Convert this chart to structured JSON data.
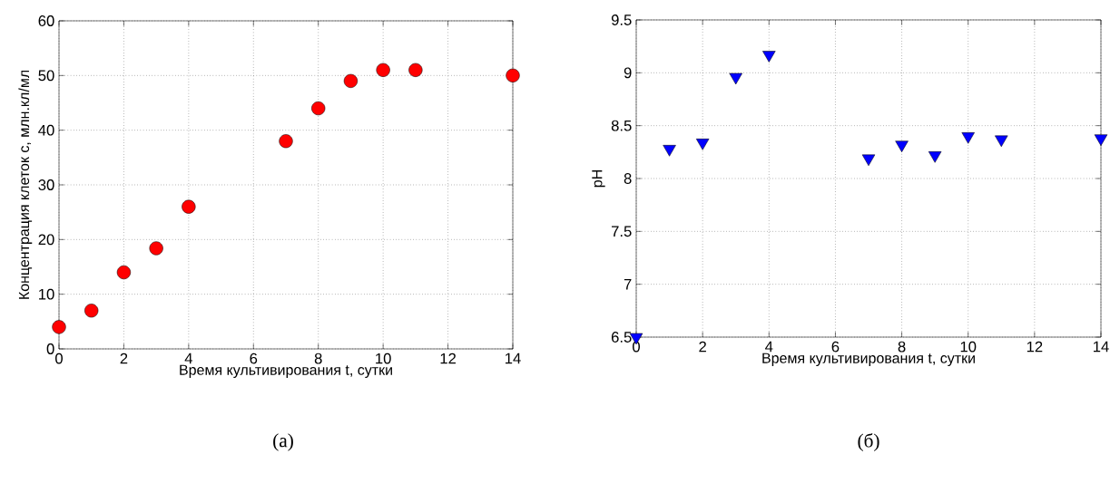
{
  "chart_data": [
    {
      "type": "scatter",
      "xlabel": "Время культивирования t, сутки",
      "ylabel": "Концентрация клеток с, млн.кл/мл",
      "annotations": [
        "(а)"
      ],
      "x": [
        0,
        1,
        2,
        3,
        4,
        7,
        8,
        9,
        10,
        11,
        14
      ],
      "series": [
        {
          "color": "#ff0000",
          "values": [
            4,
            7,
            14,
            18.4,
            26,
            38,
            44,
            49,
            51,
            51,
            50
          ]
        }
      ],
      "xlim": [
        0,
        14
      ],
      "ylim": [
        0,
        60
      ],
      "xticks": [
        0,
        2,
        4,
        6,
        8,
        10,
        12,
        14
      ],
      "yticks": [
        0,
        10,
        20,
        30,
        40,
        50,
        60
      ],
      "grid": true,
      "marker": "circle"
    },
    {
      "type": "scatter",
      "xlabel": "Время культивирования t, сутки",
      "ylabel": "pH",
      "annotations": [
        "(б)"
      ],
      "x": [
        0,
        1,
        2,
        3,
        4,
        7,
        8,
        9,
        10,
        11,
        14
      ],
      "series": [
        {
          "color": "#0000ff",
          "values": [
            6.5,
            8.28,
            8.34,
            8.96,
            9.17,
            8.19,
            8.32,
            8.22,
            8.4,
            8.37,
            8.38
          ]
        }
      ],
      "xlim": [
        0,
        14
      ],
      "ylim": [
        6.5,
        9.5
      ],
      "xticks": [
        0,
        2,
        4,
        6,
        8,
        10,
        12,
        14
      ],
      "yticks": [
        6.5,
        7,
        7.5,
        8,
        8.5,
        9,
        9.5
      ],
      "grid": true,
      "marker": "triangle"
    }
  ]
}
